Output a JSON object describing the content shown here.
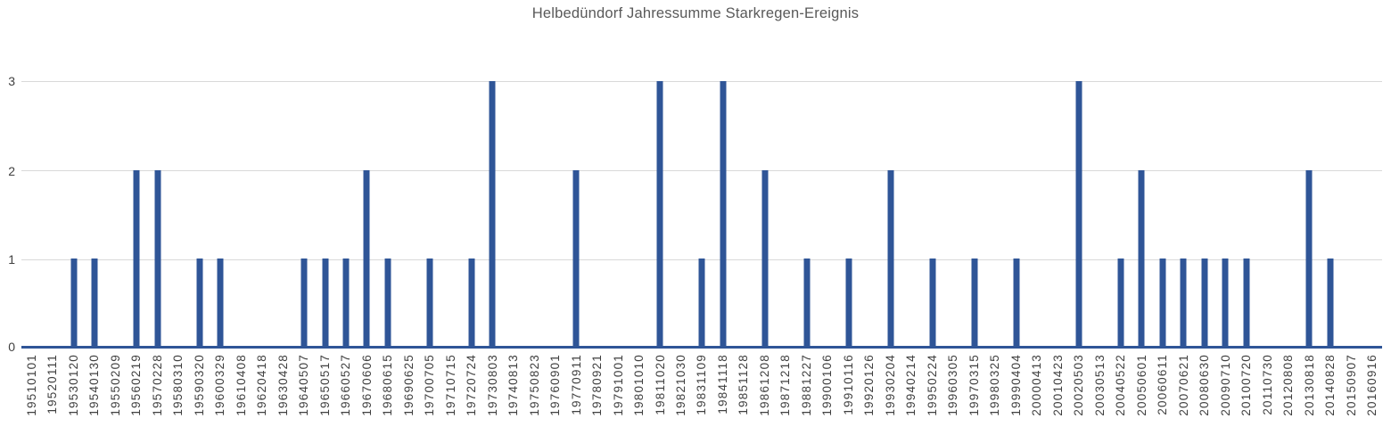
{
  "title": "Helbedündorf Jahressumme Starkregen-Ereignis",
  "colors": {
    "bar": "#2f5597",
    "axis_line": "#2f5597",
    "gridline": "#d9d9d9",
    "title_text": "#595959",
    "tick_text": "#404040",
    "background": "#ffffff"
  },
  "y_axis": {
    "ticks": {
      "t0": "0",
      "t1": "1",
      "t2": "2",
      "t3": "3"
    }
  },
  "chart_data": {
    "type": "bar",
    "title": "Helbedündorf Jahressumme Starkregen-Ereignis",
    "xlabel": "",
    "ylabel": "",
    "ylim": [
      0,
      3
    ],
    "yticks": [
      0,
      1,
      2,
      3
    ],
    "grid": "horizontal",
    "legend": "none",
    "bar_color": "#2f5597",
    "x_tick_rotation": 90,
    "categories": [
      "19510101",
      "19520111",
      "19530120",
      "19540130",
      "19550209",
      "19560219",
      "19570228",
      "19580310",
      "19590320",
      "19600329",
      "19610408",
      "19620418",
      "19630428",
      "19640507",
      "19650517",
      "19660527",
      "19670606",
      "19680615",
      "19690625",
      "19700705",
      "19710715",
      "19720724",
      "19730803",
      "19740813",
      "19750823",
      "19760901",
      "19770911",
      "19780921",
      "19791001",
      "19801010",
      "19811020",
      "19821030",
      "19831109",
      "19841118",
      "19851128",
      "19861208",
      "19871218",
      "19881227",
      "19900106",
      "19910116",
      "19920126",
      "19930204",
      "19940214",
      "19950224",
      "19960305",
      "19970315",
      "19980325",
      "19990404",
      "20000413",
      "20010423",
      "20020503",
      "20030513",
      "20040522",
      "20050601",
      "20060611",
      "20070621",
      "20080630",
      "20090710",
      "20100720",
      "20110730",
      "20120808",
      "20130818",
      "20140828",
      "20150907",
      "20160916"
    ],
    "values": [
      0,
      0,
      1,
      1,
      0,
      2,
      2,
      0,
      1,
      1,
      0,
      0,
      0,
      1,
      1,
      1,
      2,
      1,
      0,
      1,
      0,
      1,
      3,
      0,
      0,
      0,
      2,
      0,
      0,
      0,
      3,
      0,
      1,
      3,
      0,
      2,
      0,
      1,
      0,
      1,
      0,
      2,
      0,
      1,
      0,
      1,
      0,
      1,
      0,
      0,
      3,
      0,
      1,
      2,
      1,
      1,
      1,
      1,
      1,
      0,
      0,
      2,
      1,
      0,
      0
    ]
  }
}
